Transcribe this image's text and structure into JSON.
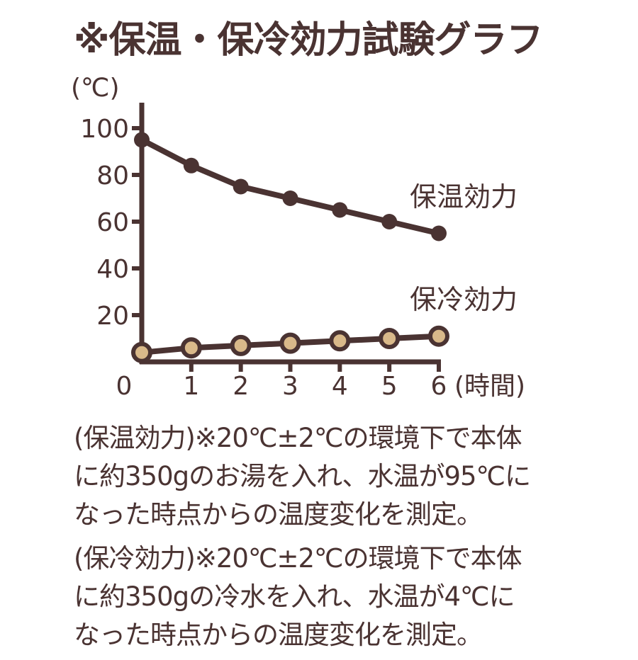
{
  "title": "※保温・保冷効力試験グラフ",
  "chart_data": {
    "type": "line",
    "ylabel": "(℃)",
    "xlabel": "(時間)",
    "x": [
      0,
      1,
      2,
      3,
      4,
      5,
      6
    ],
    "xlim": [
      0,
      6
    ],
    "ylim": [
      0,
      100
    ],
    "yticks": [
      20,
      40,
      60,
      80,
      100
    ],
    "ytick_labels": [
      "20",
      "40",
      "60",
      "80",
      "100"
    ],
    "xtick_labels": [
      "0",
      "1",
      "2",
      "3",
      "4",
      "5",
      "6"
    ],
    "grid": false,
    "series": [
      {
        "name": "保温効力",
        "values": [
          95,
          84,
          75,
          70,
          65,
          60,
          55
        ],
        "line_color": "#4a3332",
        "marker_fill": "#4a3332"
      },
      {
        "name": "保冷効力",
        "values": [
          4,
          6,
          7,
          8,
          9,
          10,
          11
        ],
        "line_color": "#4a3332",
        "marker_fill": "#d9b98a"
      }
    ]
  },
  "notes": [
    "(保温効力)※20℃±2℃の環境下で本体\nに約350gのお湯を入れ、水温が95℃に\nなった時点からの温度変化を測定。",
    "(保冷効力)※20℃±2℃の環境下で本体\nに約350gの冷水を入れ、水温が4℃に\nなった時点からの温度変化を測定。"
  ]
}
